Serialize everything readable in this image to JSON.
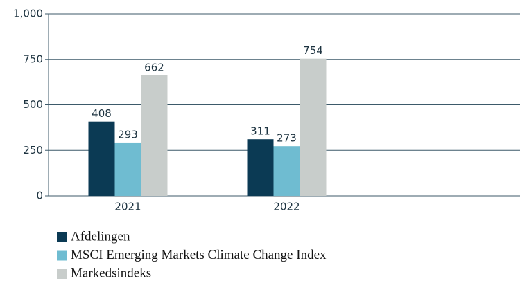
{
  "chart_data": {
    "type": "bar",
    "categories": [
      "2021",
      "2022"
    ],
    "series": [
      {
        "name": "Afdelingen",
        "color": "#0b3a54",
        "values": [
          408,
          311
        ]
      },
      {
        "name": "MSCI Emerging Markets Climate Change Index",
        "color": "#6fbcd1",
        "values": [
          293,
          273
        ]
      },
      {
        "name": "Markedsindeks",
        "color": "#c8cdcb",
        "values": [
          662,
          754
        ]
      }
    ],
    "ylim": [
      0,
      1000
    ],
    "yticks": [
      0,
      250,
      500,
      750,
      {
        "value": 1000,
        "label": "1,000"
      }
    ],
    "grid": true
  }
}
